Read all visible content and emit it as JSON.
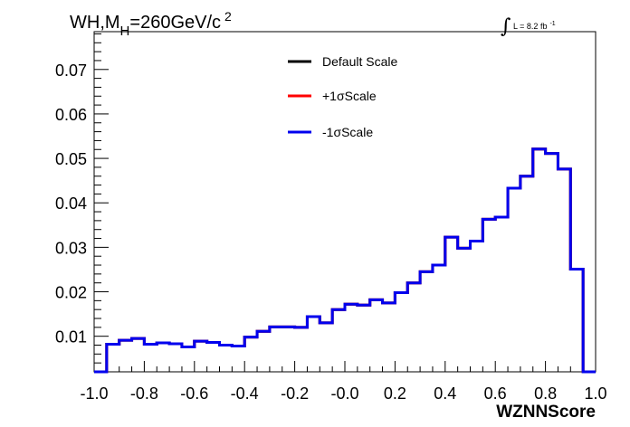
{
  "chart_data": {
    "type": "line",
    "title": {
      "main": "WH,M",
      "sub": "H",
      "rest": "=260GeV/c",
      "sup": "2"
    },
    "lumi": {
      "integral": "∫",
      "text": "L = 8.2 fb",
      "sup": "-1"
    },
    "xlabel": "WZNNScore",
    "ylabel": "",
    "xlim": [
      -1.0,
      1.0
    ],
    "ylim": [
      0.002,
      0.0785
    ],
    "x_ticks": [
      "-1.0",
      "-0.8",
      "-0.6",
      "-0.4",
      "-0.2",
      "-0.0",
      "0.2",
      "0.4",
      "0.6",
      "0.8",
      "1.0"
    ],
    "y_ticks": [
      "0.01",
      "0.02",
      "0.03",
      "0.04",
      "0.05",
      "0.06",
      "0.07"
    ],
    "bin_edges": [
      -1.0,
      -0.95,
      -0.9,
      -0.85,
      -0.8,
      -0.75,
      -0.7,
      -0.65,
      -0.6,
      -0.55,
      -0.5,
      -0.45,
      -0.4,
      -0.35,
      -0.3,
      -0.25,
      -0.2,
      -0.15,
      -0.1,
      -0.05,
      0.0,
      0.05,
      0.1,
      0.15,
      0.2,
      0.25,
      0.3,
      0.35,
      0.4,
      0.45,
      0.5,
      0.55,
      0.6,
      0.65,
      0.7,
      0.75,
      0.8,
      0.85,
      0.9,
      0.95,
      1.0
    ],
    "legend_position": "top-center",
    "series": [
      {
        "name": "Default Scale",
        "color": "#000000",
        "values": [
          0.0,
          0.0082,
          0.0091,
          0.0095,
          0.0082,
          0.0085,
          0.0083,
          0.0076,
          0.0089,
          0.0086,
          0.008,
          0.0078,
          0.0098,
          0.0111,
          0.0121,
          0.0121,
          0.012,
          0.0144,
          0.013,
          0.016,
          0.0172,
          0.017,
          0.0182,
          0.0175,
          0.0198,
          0.022,
          0.0245,
          0.026,
          0.0323,
          0.0298,
          0.0314,
          0.0363,
          0.0368,
          0.0433,
          0.046,
          0.0521,
          0.0511,
          0.0476,
          0.0251,
          0.0
        ]
      },
      {
        "name": "+1σScale",
        "color": "#ff0000",
        "values": [
          0.0,
          0.0082,
          0.0091,
          0.0095,
          0.0082,
          0.0085,
          0.0083,
          0.0076,
          0.0089,
          0.0086,
          0.008,
          0.0078,
          0.0098,
          0.0111,
          0.0121,
          0.0121,
          0.012,
          0.0144,
          0.013,
          0.016,
          0.0172,
          0.017,
          0.0182,
          0.0175,
          0.0198,
          0.022,
          0.0245,
          0.026,
          0.0323,
          0.0298,
          0.0314,
          0.0363,
          0.0368,
          0.0433,
          0.046,
          0.0521,
          0.0511,
          0.0476,
          0.0251,
          0.0
        ]
      },
      {
        "name": "-1σScale",
        "color": "#0000ee",
        "values": [
          0.0,
          0.0082,
          0.0091,
          0.0095,
          0.0082,
          0.0085,
          0.0083,
          0.0076,
          0.0089,
          0.0086,
          0.008,
          0.0078,
          0.0098,
          0.0111,
          0.0121,
          0.0121,
          0.012,
          0.0144,
          0.013,
          0.016,
          0.0172,
          0.017,
          0.0182,
          0.0175,
          0.0198,
          0.022,
          0.0245,
          0.026,
          0.0323,
          0.0298,
          0.0314,
          0.0363,
          0.0368,
          0.0433,
          0.046,
          0.0521,
          0.0511,
          0.0476,
          0.0251,
          0.0
        ]
      }
    ],
    "grid": false
  }
}
